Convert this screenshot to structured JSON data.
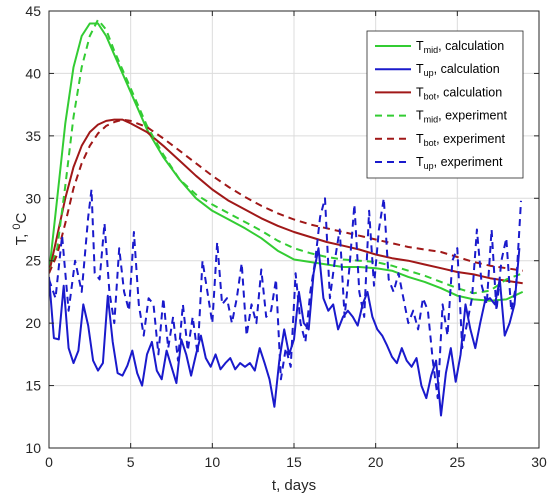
{
  "chart_data": {
    "type": "line",
    "xlabel": "t, days",
    "ylabel": "T, ",
    "ylabel_unit": "C",
    "ylabel_sup": "0",
    "xlim": [
      0,
      30
    ],
    "ylim": [
      10,
      45
    ],
    "xticks": [
      0,
      5,
      10,
      15,
      20,
      25,
      30
    ],
    "yticks": [
      10,
      15,
      20,
      25,
      30,
      35,
      40,
      45
    ],
    "grid": true,
    "legend_position": "top-right",
    "series": [
      {
        "key": "mid_calc",
        "legend_base": "T",
        "legend_sub": "mid",
        "legend_suffix": ", calculation",
        "color": "#33cc33",
        "dash": "solid",
        "x": [
          0,
          0.5,
          1,
          1.5,
          2,
          2.5,
          3,
          3.5,
          4,
          5,
          6,
          7,
          8,
          9,
          10,
          11,
          12,
          13,
          14,
          15,
          16,
          17,
          18,
          19,
          20,
          21,
          22,
          23,
          24,
          25,
          26,
          27,
          28,
          29
        ],
        "y": [
          24,
          30,
          36,
          40.5,
          43,
          44,
          44,
          43,
          41.5,
          38.5,
          35.5,
          33.3,
          31.5,
          30,
          29,
          28.3,
          27.6,
          26.8,
          25.8,
          25.1,
          24.9,
          24.7,
          24.5,
          24.5,
          24.4,
          24.2,
          23.7,
          23.3,
          22.8,
          22.2,
          21.9,
          21.8,
          21.9,
          22.5
        ]
      },
      {
        "key": "up_calc",
        "legend_base": "T",
        "legend_sub": "up",
        "legend_suffix": ", calculation",
        "color": "#1a1acc",
        "dash": "solid",
        "x": [
          0,
          0.3,
          0.6,
          0.9,
          1.2,
          1.5,
          1.8,
          2.1,
          2.4,
          2.7,
          3.0,
          3.3,
          3.6,
          3.9,
          4.2,
          4.5,
          4.8,
          5.1,
          5.4,
          5.7,
          6.0,
          6.3,
          6.6,
          6.9,
          7.2,
          7.5,
          7.8,
          8.1,
          8.4,
          8.7,
          9.0,
          9.3,
          9.6,
          9.9,
          10.2,
          10.5,
          10.8,
          11.1,
          11.4,
          11.7,
          12.0,
          12.3,
          12.6,
          12.9,
          13.2,
          13.5,
          13.8,
          14.1,
          14.4,
          14.7,
          15.0,
          15.3,
          15.6,
          15.9,
          16.2,
          16.5,
          16.8,
          17.1,
          17.4,
          17.7,
          18.0,
          18.3,
          18.6,
          18.9,
          19.2,
          19.5,
          19.8,
          20.1,
          20.4,
          20.7,
          21.0,
          21.3,
          21.6,
          21.9,
          22.2,
          22.5,
          22.8,
          23.1,
          23.4,
          23.7,
          24.0,
          24.3,
          24.6,
          24.9,
          25.2,
          25.5,
          25.8,
          26.1,
          26.4,
          26.7,
          27.0,
          27.3,
          27.6,
          27.9,
          28.2,
          28.5,
          28.8
        ],
        "y": [
          23.7,
          18.8,
          18.7,
          23.0,
          18.0,
          16.8,
          17.8,
          21.5,
          19.8,
          17.0,
          16.2,
          16.8,
          22.2,
          18.5,
          16.0,
          15.8,
          16.6,
          17.8,
          16.0,
          15.0,
          17.5,
          18.5,
          16.2,
          15.5,
          17.8,
          16.5,
          15.2,
          18.7,
          17.5,
          15.8,
          17.5,
          19.0,
          17.2,
          16.5,
          17.5,
          16.3,
          16.8,
          17.2,
          16.3,
          16.8,
          16.5,
          16.8,
          16.2,
          18.0,
          16.8,
          15.5,
          13.3,
          17.0,
          19.5,
          17.5,
          18.7,
          22.5,
          20.0,
          19.5,
          24.0,
          26.0,
          22.0,
          21.0,
          21.5,
          19.5,
          20.5,
          21.0,
          20.5,
          19.8,
          21.5,
          22.5,
          20.5,
          19.5,
          19.0,
          18.2,
          17.3,
          16.8,
          18.0,
          17.0,
          16.5,
          17.2,
          15.0,
          14.0,
          15.8,
          17.0,
          12.6,
          16.0,
          18.0,
          15.3,
          17.5,
          21.5,
          19.5,
          18.0,
          20.0,
          21.8,
          22.0,
          21.5,
          23.5,
          19.0,
          20.0,
          21.5,
          26.0
        ]
      },
      {
        "key": "bot_calc",
        "legend_base": "T",
        "legend_sub": "bot",
        "legend_suffix": ", calculation",
        "color": "#a01818",
        "dash": "solid",
        "x": [
          0,
          0.5,
          1,
          1.5,
          2,
          2.5,
          3,
          3.5,
          4,
          4.5,
          5,
          6,
          7,
          8,
          9,
          10,
          11,
          12,
          13,
          14,
          15,
          16,
          17,
          18,
          19,
          20,
          21,
          22,
          23,
          24,
          25,
          26,
          27,
          28,
          29
        ],
        "y": [
          24,
          27,
          30,
          32.5,
          34.2,
          35.3,
          35.9,
          36.2,
          36.3,
          36.3,
          36.0,
          35.3,
          34.2,
          33.0,
          31.8,
          30.7,
          29.8,
          29.1,
          28.4,
          27.8,
          27.3,
          26.9,
          26.5,
          26.2,
          25.9,
          25.5,
          25.2,
          25.0,
          24.7,
          24.4,
          24.1,
          23.9,
          23.6,
          23.4,
          23.2
        ]
      },
      {
        "key": "mid_exp",
        "legend_base": "T",
        "legend_sub": "mid",
        "legend_suffix": ", experiment",
        "color": "#33cc33",
        "dash": "dashed",
        "x": [
          0,
          0.5,
          1,
          1.5,
          2,
          2.5,
          3,
          3.5,
          4,
          5,
          6,
          7,
          8,
          9,
          10,
          11,
          12,
          13,
          14,
          15,
          16,
          17,
          18,
          19,
          20,
          21,
          22,
          23,
          24,
          25,
          26,
          27,
          28,
          29
        ],
        "y": [
          24,
          26,
          31,
          36.5,
          40.5,
          43,
          44.3,
          43.5,
          41.8,
          38.8,
          35.8,
          33.5,
          31.5,
          30.3,
          29.5,
          28.8,
          28.1,
          27.4,
          26.6,
          26.0,
          25.6,
          25.3,
          25.1,
          25.0,
          24.9,
          24.6,
          24.2,
          23.8,
          23.3,
          22.8,
          22.4,
          22.6,
          23.5,
          24.0
        ]
      },
      {
        "key": "bot_exp",
        "legend_base": "T",
        "legend_sub": "bot",
        "legend_suffix": ", experiment",
        "color": "#a01818",
        "dash": "dashed",
        "x": [
          0,
          0.5,
          1,
          1.5,
          2,
          2.5,
          3,
          3.5,
          4,
          4.5,
          5,
          6,
          7,
          8,
          9,
          10,
          11,
          12,
          13,
          14,
          15,
          16,
          17,
          18,
          19,
          20,
          21,
          22,
          23,
          24,
          25,
          26,
          27,
          28,
          29
        ],
        "y": [
          24,
          25.5,
          28,
          30.8,
          32.8,
          34.2,
          35.2,
          35.8,
          36.1,
          36.3,
          36.2,
          35.7,
          34.8,
          33.8,
          32.8,
          31.8,
          30.9,
          30.1,
          29.4,
          28.8,
          28.3,
          27.9,
          27.6,
          27.3,
          27.0,
          26.7,
          26.4,
          26.1,
          25.9,
          25.7,
          25.3,
          24.9,
          24.6,
          24.4,
          24.2
        ]
      },
      {
        "key": "up_exp",
        "legend_base": "T",
        "legend_sub": "up",
        "legend_suffix": ", experiment",
        "color": "#1a1acc",
        "dash": "dashed",
        "x": [
          0,
          0.4,
          0.8,
          1.2,
          1.6,
          2.0,
          2.4,
          2.6,
          2.8,
          3.1,
          3.4,
          3.7,
          4.0,
          4.3,
          4.6,
          4.9,
          5.2,
          5.5,
          5.8,
          6.1,
          6.4,
          6.7,
          7.0,
          7.3,
          7.6,
          7.9,
          8.2,
          8.5,
          8.8,
          9.1,
          9.4,
          9.7,
          10.0,
          10.3,
          10.6,
          10.9,
          11.2,
          11.5,
          11.8,
          12.1,
          12.4,
          12.7,
          13.0,
          13.3,
          13.6,
          13.9,
          14.2,
          14.5,
          14.8,
          15.1,
          15.4,
          15.7,
          16.0,
          16.3,
          16.6,
          16.9,
          17.2,
          17.5,
          17.8,
          18.1,
          18.4,
          18.7,
          19.0,
          19.3,
          19.6,
          19.9,
          20.2,
          20.5,
          20.8,
          21.1,
          21.4,
          21.7,
          22.0,
          22.3,
          22.6,
          22.9,
          23.2,
          23.5,
          23.8,
          24.1,
          24.4,
          24.7,
          25.0,
          25.3,
          25.6,
          25.9,
          26.2,
          26.5,
          26.8,
          27.1,
          27.4,
          27.7,
          28.0,
          28.3,
          28.6,
          28.9
        ],
        "y": [
          23.5,
          22.0,
          27.0,
          21.0,
          25.0,
          22.5,
          28.5,
          30.7,
          24.0,
          23.5,
          28.0,
          22.5,
          20.0,
          26.0,
          22.5,
          21.0,
          27.3,
          21.5,
          19.0,
          22.0,
          21.5,
          17.5,
          22.0,
          18.0,
          20.5,
          17.0,
          21.5,
          17.8,
          20.5,
          17.5,
          25.0,
          22.5,
          20.0,
          26.5,
          21.5,
          22.0,
          20.0,
          22.0,
          24.8,
          19.0,
          21.5,
          20.0,
          24.3,
          20.5,
          21.0,
          23.5,
          15.5,
          18.0,
          16.5,
          24.0,
          20.0,
          18.5,
          22.5,
          25.0,
          28.5,
          30.0,
          22.0,
          25.0,
          27.5,
          20.5,
          24.5,
          29.5,
          22.5,
          20.5,
          29.0,
          23.0,
          27.5,
          30.0,
          23.5,
          22.5,
          24.0,
          22.0,
          20.0,
          21.0,
          19.5,
          22.0,
          21.0,
          17.0,
          14.0,
          21.5,
          19.0,
          25.0,
          26.0,
          18.0,
          20.0,
          22.0,
          27.5,
          23.0,
          21.5,
          27.5,
          21.0,
          25.0,
          26.8,
          21.0,
          23.0,
          29.8
        ]
      }
    ]
  }
}
